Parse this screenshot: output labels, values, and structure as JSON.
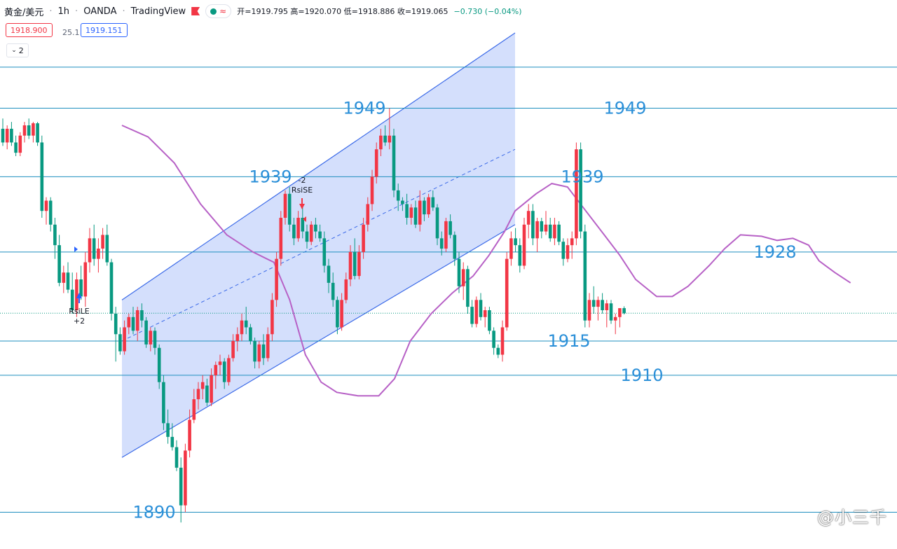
{
  "header": {
    "symbol": "黄金/美元",
    "interval": "1h",
    "broker": "OANDA",
    "platform": "TradingView",
    "ohlc": "开=1919.795 高=1920.070 低=1918.886 收=1919.065",
    "change": "−0.730 (−0.04%)"
  },
  "trade": {
    "sell_price": "1918.900",
    "spread": "25.1",
    "buy_price": "1919.151"
  },
  "indicator_toggle": "2",
  "watermark": "@小三千",
  "colors": {
    "up": "#f23645",
    "down": "#089981",
    "ma": "#b761c6",
    "level": "#1f8fbf",
    "label": "#2a8fd8",
    "channel_fill": "#cdd9fb",
    "channel_line": "#3b6ae8"
  },
  "signals": {
    "long": {
      "label": "RsiLE",
      "qty": "+2"
    },
    "short": {
      "label": "RsiSE",
      "qty": "-2"
    }
  },
  "chart_data": {
    "type": "candlestick",
    "title": "",
    "xlabel": "",
    "ylabel": "",
    "ylim": [
      1888,
      1960
    ],
    "grid": false,
    "horizontal_levels": [
      1955,
      1949,
      1939,
      1928,
      1915,
      1910,
      1890
    ],
    "level_labels": [
      {
        "text": "1949",
        "value": 1949
      },
      {
        "text": "1949",
        "value": 1949
      },
      {
        "text": "1939",
        "value": 1939
      },
      {
        "text": "1939",
        "value": 1939
      },
      {
        "text": "1928",
        "value": 1928
      },
      {
        "text": "1915",
        "value": 1915
      },
      {
        "text": "1910",
        "value": 1910
      },
      {
        "text": "1890",
        "value": 1890
      }
    ],
    "current_price": 1919.06,
    "candles": [
      [
        1946,
        1947.5,
        1943.5,
        1944
      ],
      [
        1944,
        1946.5,
        1943,
        1946
      ],
      [
        1946,
        1947,
        1943.5,
        1944
      ],
      [
        1944,
        1945,
        1942,
        1942.5
      ],
      [
        1942.5,
        1945.5,
        1942,
        1945
      ],
      [
        1945,
        1947,
        1944,
        1946.5
      ],
      [
        1946.5,
        1947.5,
        1944.5,
        1945
      ],
      [
        1945,
        1947,
        1944,
        1946.8
      ],
      [
        1946.8,
        1947,
        1943.5,
        1944
      ],
      [
        1944,
        1945,
        1933,
        1934
      ],
      [
        1934,
        1936,
        1932,
        1935.5
      ],
      [
        1935.5,
        1936,
        1931,
        1932
      ],
      [
        1932,
        1933,
        1927,
        1929
      ],
      [
        1929,
        1930.5,
        1923,
        1923.5
      ],
      [
        1923.5,
        1926,
        1922,
        1925
      ],
      [
        1925,
        1926.5,
        1922,
        1922.5
      ],
      [
        1922.5,
        1925,
        1919,
        1919.5
      ],
      [
        1919.5,
        1925,
        1918.5,
        1924
      ],
      [
        1924,
        1926,
        1921,
        1921.5
      ],
      [
        1921.5,
        1928,
        1920,
        1926.5
      ],
      [
        1926.5,
        1931.5,
        1925,
        1930
      ],
      [
        1930,
        1932,
        1926,
        1927
      ],
      [
        1927,
        1930,
        1925,
        1928.5
      ],
      [
        1928.5,
        1931.5,
        1927,
        1930.5
      ],
      [
        1930.5,
        1932,
        1926,
        1926.5
      ],
      [
        1926.5,
        1927,
        1918,
        1919
      ],
      [
        1919,
        1920,
        1912,
        1916
      ],
      [
        1916,
        1917,
        1913,
        1913.5
      ],
      [
        1913.5,
        1918,
        1913,
        1917
      ],
      [
        1917,
        1919,
        1916,
        1918.5
      ],
      [
        1918.5,
        1920,
        1916,
        1916.5
      ],
      [
        1916.5,
        1920,
        1915,
        1919.5
      ],
      [
        1919.5,
        1920.5,
        1917,
        1918
      ],
      [
        1918,
        1918.5,
        1914,
        1914.5
      ],
      [
        1914.5,
        1917,
        1913.5,
        1916.5
      ],
      [
        1916.5,
        1917,
        1913,
        1914
      ],
      [
        1914,
        1914.5,
        1908,
        1909
      ],
      [
        1909,
        1910,
        1902,
        1903
      ],
      [
        1903,
        1905,
        1900,
        1901
      ],
      [
        1901,
        1903,
        1899,
        1899.5
      ],
      [
        1899.5,
        1900.5,
        1896,
        1896.5
      ],
      [
        1896.5,
        1898,
        1888.5,
        1891
      ],
      [
        1891,
        1900,
        1890,
        1899
      ],
      [
        1899,
        1905,
        1898,
        1903.5
      ],
      [
        1903.5,
        1908,
        1903,
        1906.5
      ],
      [
        1906.5,
        1909,
        1905,
        1908
      ],
      [
        1908,
        1910,
        1906.5,
        1909
      ],
      [
        1908.5,
        1909.5,
        1905.5,
        1906
      ],
      [
        1906,
        1911,
        1905.5,
        1910
      ],
      [
        1910,
        1912,
        1908,
        1911.5
      ],
      [
        1911.5,
        1913,
        1910,
        1912
      ],
      [
        1912,
        1912.5,
        1908,
        1909
      ],
      [
        1909,
        1913,
        1908.5,
        1912.5
      ],
      [
        1912.5,
        1916,
        1912,
        1915
      ],
      [
        1915,
        1917,
        1913.5,
        1916
      ],
      [
        1916,
        1919,
        1915,
        1918
      ],
      [
        1918,
        1920,
        1916,
        1917
      ],
      [
        1917,
        1917.5,
        1914.5,
        1915
      ],
      [
        1915,
        1915.5,
        1911,
        1912
      ],
      [
        1912,
        1915,
        1911,
        1914.5
      ],
      [
        1914.5,
        1916,
        1911.5,
        1912.5
      ],
      [
        1912.5,
        1917,
        1912,
        1916
      ],
      [
        1916,
        1922,
        1915,
        1921
      ],
      [
        1921,
        1928,
        1920,
        1927
      ],
      [
        1927,
        1934,
        1926,
        1933
      ],
      [
        1933,
        1937,
        1932,
        1936.5
      ],
      [
        1936.5,
        1937.5,
        1931,
        1932
      ],
      [
        1932,
        1933,
        1929,
        1930
      ],
      [
        1930,
        1934,
        1929.5,
        1933
      ],
      [
        1933,
        1935,
        1930,
        1931
      ],
      [
        1931,
        1932,
        1928.5,
        1929.5
      ],
      [
        1929.5,
        1932.5,
        1929,
        1932
      ],
      [
        1932,
        1933,
        1930,
        1931
      ],
      [
        1931,
        1932,
        1929.5,
        1930
      ],
      [
        1930,
        1931,
        1925,
        1926
      ],
      [
        1926,
        1927,
        1922,
        1923.5
      ],
      [
        1923.5,
        1925,
        1920,
        1921
      ],
      [
        1921,
        1921.5,
        1916,
        1917
      ],
      [
        1917,
        1922,
        1916.5,
        1921
      ],
      [
        1921,
        1925,
        1920.5,
        1924
      ],
      [
        1924,
        1929,
        1923,
        1928
      ],
      [
        1928,
        1930,
        1924,
        1924.5
      ],
      [
        1924.5,
        1929,
        1924,
        1928
      ],
      [
        1928,
        1933,
        1927,
        1932
      ],
      [
        1932,
        1936,
        1931,
        1935
      ],
      [
        1935,
        1940,
        1934,
        1939
      ],
      [
        1939,
        1944,
        1938,
        1943
      ],
      [
        1943,
        1946,
        1942,
        1945
      ],
      [
        1945,
        1946.5,
        1943.5,
        1944
      ],
      [
        1944,
        1949,
        1943,
        1945
      ],
      [
        1945,
        1946,
        1936,
        1937
      ],
      [
        1937,
        1938,
        1934,
        1935.5
      ],
      [
        1935.5,
        1936,
        1934,
        1935
      ],
      [
        1935,
        1936.5,
        1932,
        1933
      ],
      [
        1933,
        1935,
        1932,
        1934.5
      ],
      [
        1934.5,
        1935.5,
        1931.5,
        1932
      ],
      [
        1932,
        1937,
        1931,
        1935.5
      ],
      [
        1935.5,
        1936,
        1932.5,
        1933.5
      ],
      [
        1933.5,
        1936.5,
        1933,
        1936
      ],
      [
        1936,
        1937,
        1934,
        1934.5
      ],
      [
        1934.5,
        1935,
        1929,
        1930
      ],
      [
        1930,
        1931,
        1927.5,
        1928.5
      ],
      [
        1928.5,
        1933,
        1928,
        1932.5
      ],
      [
        1932.5,
        1933.5,
        1930,
        1930.5
      ],
      [
        1930.5,
        1931,
        1926,
        1927
      ],
      [
        1927,
        1928,
        1922,
        1923
      ],
      [
        1923,
        1926.5,
        1921,
        1925.5
      ],
      [
        1925.5,
        1926,
        1919,
        1920
      ],
      [
        1920,
        1921,
        1917,
        1917.5
      ],
      [
        1917.5,
        1921.5,
        1917,
        1921
      ],
      [
        1921,
        1922,
        1918,
        1918.5
      ],
      [
        1918.5,
        1920,
        1917,
        1919.5
      ],
      [
        1919.5,
        1920,
        1916,
        1916.5
      ],
      [
        1916.5,
        1917,
        1913,
        1914
      ],
      [
        1914,
        1914.5,
        1912.5,
        1913
      ],
      [
        1913,
        1918,
        1912,
        1917
      ],
      [
        1917,
        1928,
        1916.5,
        1927
      ],
      [
        1927,
        1931,
        1926,
        1930
      ],
      [
        1930,
        1931.5,
        1928,
        1929
      ],
      [
        1929,
        1930,
        1925,
        1926
      ],
      [
        1926,
        1933,
        1925.5,
        1932
      ],
      [
        1932,
        1935,
        1930,
        1934
      ],
      [
        1934,
        1935,
        1929,
        1930
      ],
      [
        1930,
        1933,
        1928,
        1932.5
      ],
      [
        1932.5,
        1933,
        1930,
        1931
      ],
      [
        1931,
        1934,
        1930.5,
        1932
      ],
      [
        1932,
        1933,
        1929.5,
        1930
      ],
      [
        1930,
        1933,
        1929,
        1932
      ],
      [
        1932,
        1932.5,
        1929,
        1929.5
      ],
      [
        1929.5,
        1930,
        1926,
        1927
      ],
      [
        1927,
        1930,
        1926.5,
        1929
      ],
      [
        1929,
        1931,
        1927,
        1930
      ],
      [
        1930,
        1944,
        1929,
        1943
      ],
      [
        1943,
        1944,
        1930,
        1931
      ],
      [
        1931,
        1932,
        1917,
        1918
      ],
      [
        1918,
        1922,
        1917,
        1921
      ],
      [
        1921,
        1923,
        1919,
        1920
      ],
      [
        1920,
        1921.5,
        1918,
        1921
      ],
      [
        1921,
        1922,
        1919,
        1919.5
      ],
      [
        1919.5,
        1921,
        1917,
        1920.5
      ],
      [
        1920.5,
        1921,
        1917.5,
        1918
      ],
      [
        1918,
        1919,
        1916,
        1918.5
      ],
      [
        1918.5,
        1919.5,
        1917,
        1919.8
      ],
      [
        1919.8,
        1920.07,
        1918.886,
        1919.065
      ]
    ],
    "moving_average": [
      [
        0,
        1946.5
      ],
      [
        10,
        1944.8
      ],
      [
        20,
        1941
      ],
      [
        30,
        1935
      ],
      [
        40,
        1930.5
      ],
      [
        50,
        1928
      ],
      [
        58,
        1926.5
      ],
      [
        64,
        1921
      ],
      [
        70,
        1913
      ],
      [
        76,
        1909
      ],
      [
        82,
        1907.5
      ],
      [
        90,
        1907
      ],
      [
        98,
        1907
      ],
      [
        104,
        1909.5
      ],
      [
        110,
        1915
      ],
      [
        118,
        1919
      ],
      [
        126,
        1922
      ],
      [
        134,
        1924.5
      ],
      [
        140,
        1927.5
      ],
      [
        146,
        1931
      ],
      [
        150,
        1934
      ],
      [
        158,
        1936.5
      ],
      [
        164,
        1938
      ],
      [
        170,
        1937.5
      ],
      [
        176,
        1934.5
      ],
      [
        184,
        1930.5
      ],
      [
        190,
        1927.5
      ],
      [
        196,
        1924
      ],
      [
        204,
        1921.5
      ],
      [
        210,
        1921.5
      ],
      [
        216,
        1923
      ],
      [
        224,
        1926
      ],
      [
        230,
        1928.5
      ],
      [
        236,
        1930.5
      ],
      [
        244,
        1930.3
      ],
      [
        250,
        1929.7
      ],
      [
        256,
        1930
      ],
      [
        262,
        1929
      ],
      [
        266,
        1926.7
      ],
      [
        272,
        1925
      ],
      [
        278,
        1923.5
      ]
    ],
    "channel": {
      "upper": [
        [
          0,
          1921
        ],
        [
          150,
          1960
        ]
      ],
      "mid": [
        [
          0,
          1915
        ],
        [
          150,
          1943
        ]
      ],
      "lower": [
        [
          0,
          1898
        ],
        [
          150,
          1932
        ]
      ]
    }
  }
}
